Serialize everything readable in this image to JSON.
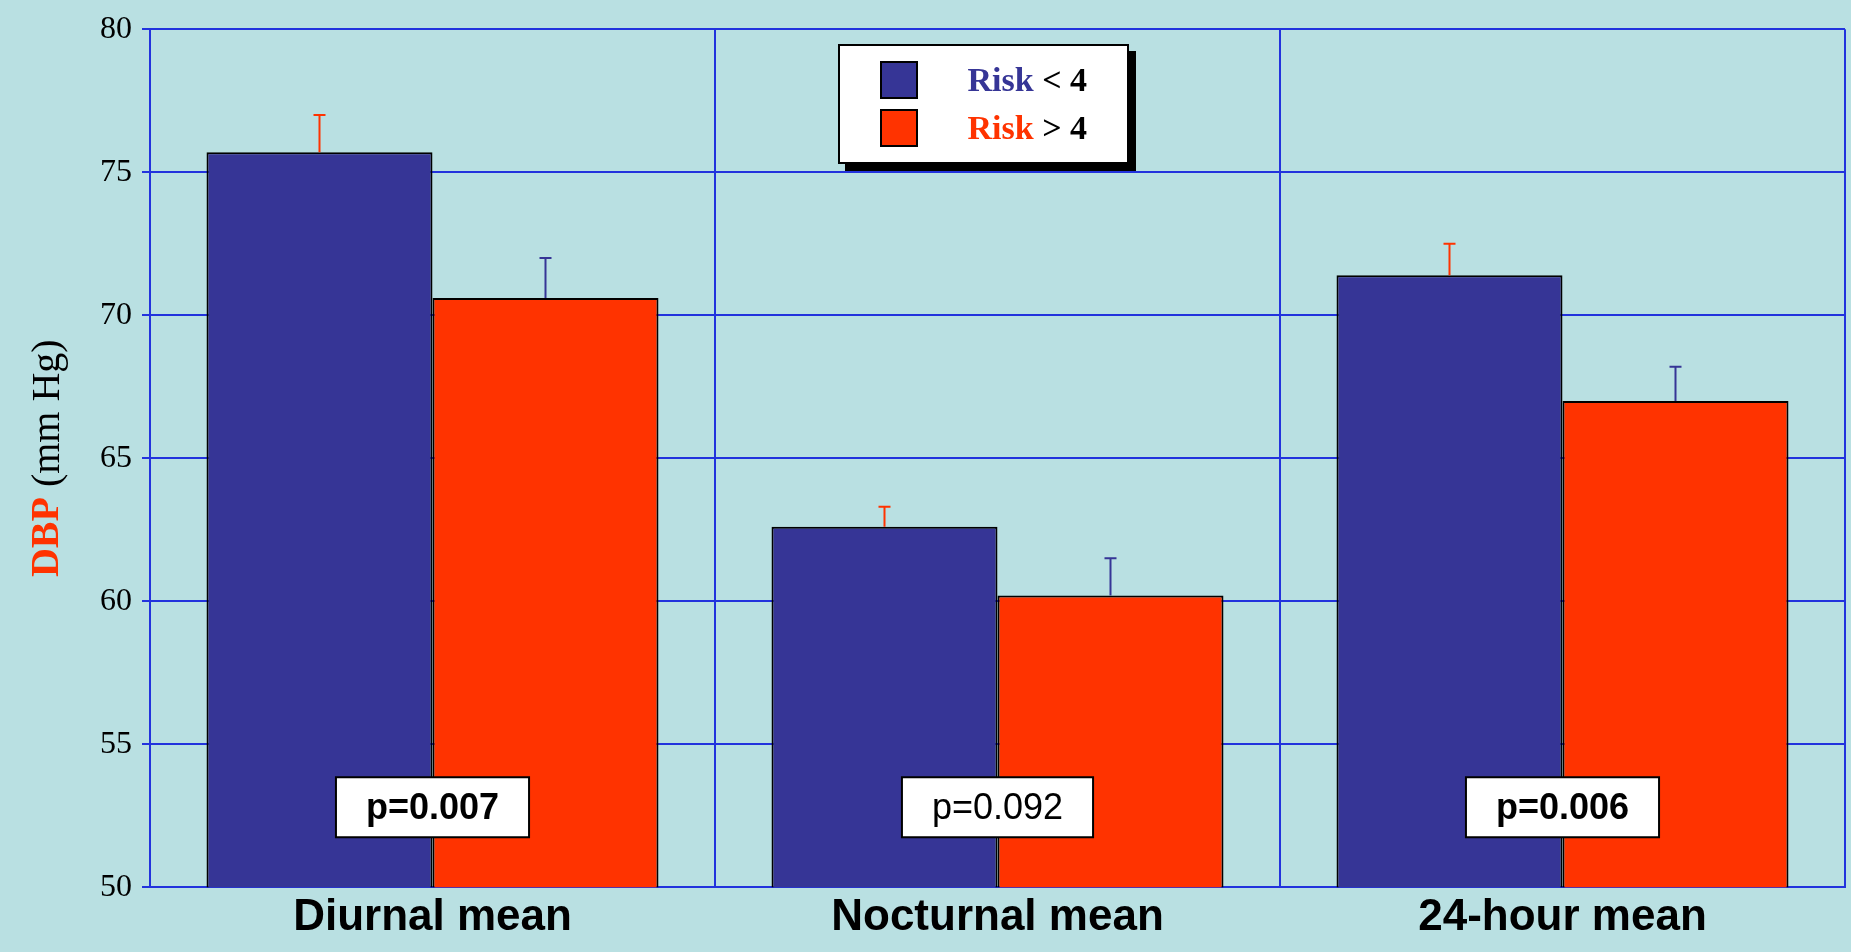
{
  "chart_data": {
    "type": "bar",
    "ylabel": "DBP (mm Hg)",
    "categories": [
      "Diurnal mean",
      "Nocturnal mean",
      "24-hour mean"
    ],
    "series": [
      {
        "name": "Risk < 4",
        "color": "#363596",
        "values": [
          75.7,
          62.6,
          71.4
        ],
        "errors": [
          [
            75.7,
            77.0
          ],
          [
            62.6,
            63.3
          ],
          [
            71.4,
            72.5
          ]
        ]
      },
      {
        "name": "Risk > 4",
        "color": "#ff3300",
        "values": [
          70.6,
          60.2,
          67.0
        ],
        "errors": [
          [
            70.6,
            72.0
          ],
          [
            60.2,
            61.5
          ],
          [
            67.0,
            68.2
          ]
        ]
      }
    ],
    "ylim": [
      50,
      80
    ],
    "yticks": [
      50,
      55,
      60,
      65,
      70,
      75,
      80
    ],
    "grid": true,
    "legend": "top",
    "annotations": [
      "p=0.007",
      "p=0.092",
      "p=0.006"
    ]
  }
}
